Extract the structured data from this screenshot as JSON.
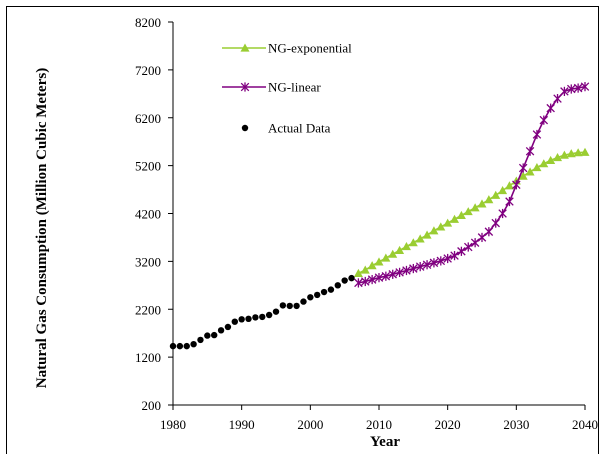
{
  "chart_data": {
    "type": "line",
    "title": "",
    "xlabel": "Year",
    "ylabel": "Natural Gas Consumption (Million Cubic Meters)",
    "xlim": [
      1980,
      2040
    ],
    "ylim": [
      200,
      8200
    ],
    "x_ticks": [
      1980,
      1990,
      2000,
      2010,
      2020,
      2030,
      2040
    ],
    "y_ticks": [
      200,
      1200,
      2200,
      3200,
      4200,
      5200,
      6200,
      7200,
      8200
    ],
    "grid": false,
    "legend_position": "top-left",
    "series": [
      {
        "name": "NG-exponential",
        "marker": "triangle",
        "color": "#9acd32",
        "x": [
          2007,
          2008,
          2009,
          2010,
          2011,
          2012,
          2013,
          2014,
          2015,
          2016,
          2017,
          2018,
          2019,
          2020,
          2021,
          2022,
          2023,
          2024,
          2025,
          2026,
          2027,
          2028,
          2029,
          2030,
          2031,
          2032,
          2033,
          2034,
          2035,
          2036,
          2037,
          2038,
          2039,
          2040
        ],
        "y": [
          2950,
          3020,
          3110,
          3190,
          3270,
          3350,
          3430,
          3510,
          3590,
          3670,
          3750,
          3840,
          3920,
          4000,
          4080,
          4160,
          4240,
          4320,
          4400,
          4490,
          4580,
          4680,
          4780,
          4880,
          4980,
          5070,
          5160,
          5240,
          5310,
          5370,
          5420,
          5450,
          5470,
          5480
        ]
      },
      {
        "name": "NG-linear",
        "marker": "asterisk",
        "color": "#800080",
        "x": [
          2007,
          2008,
          2009,
          2010,
          2011,
          2012,
          2013,
          2014,
          2015,
          2016,
          2017,
          2018,
          2019,
          2020,
          2021,
          2022,
          2023,
          2024,
          2025,
          2026,
          2027,
          2028,
          2029,
          2030,
          2031,
          2032,
          2033,
          2034,
          2035,
          2036,
          2037,
          2038,
          2039,
          2040
        ],
        "y": [
          2750,
          2780,
          2820,
          2860,
          2890,
          2930,
          2970,
          3010,
          3050,
          3090,
          3130,
          3170,
          3210,
          3260,
          3320,
          3410,
          3500,
          3590,
          3700,
          3820,
          4000,
          4200,
          4450,
          4800,
          5150,
          5500,
          5850,
          6150,
          6400,
          6600,
          6750,
          6800,
          6820,
          6850
        ]
      },
      {
        "name": "Actual Data",
        "marker": "dot",
        "color": "#000000",
        "x": [
          1980,
          1981,
          1982,
          1983,
          1984,
          1985,
          1986,
          1987,
          1988,
          1989,
          1990,
          1991,
          1992,
          1993,
          1994,
          1995,
          1996,
          1997,
          1998,
          1999,
          2000,
          2001,
          2002,
          2003,
          2004,
          2005,
          2006
        ],
        "y": [
          1430,
          1430,
          1430,
          1470,
          1560,
          1650,
          1660,
          1760,
          1830,
          1940,
          1990,
          2000,
          2030,
          2040,
          2080,
          2150,
          2280,
          2270,
          2270,
          2360,
          2450,
          2500,
          2560,
          2610,
          2700,
          2800,
          2850
        ]
      }
    ]
  }
}
